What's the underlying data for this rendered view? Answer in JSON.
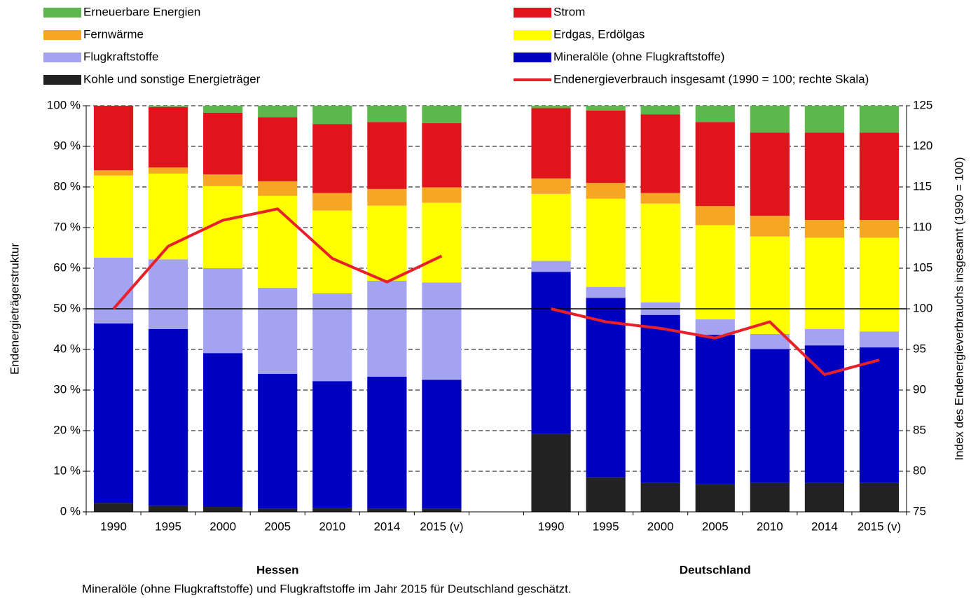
{
  "chart_data": {
    "type": "bar",
    "stacked": true,
    "categories": [
      "1990",
      "1995",
      "2000",
      "2005",
      "2010",
      "2014",
      "2015 (v)",
      null,
      "1990",
      "1995",
      "2000",
      "2005",
      "2010",
      "2014",
      "2015 (v)"
    ],
    "group_labels": [
      "Hessen",
      "Deutschland"
    ],
    "ylabel": "Endenergieträgerstruktur",
    "y2label": "Index des Endenergieverbrauchs insgesamt (1990 = 100)",
    "note": "Mineralöle (ohne Flugkraftstoffe) und Flugkraftstoffe im Jahr 2015 für Deutschland geschätzt.",
    "ylim": [
      0,
      100
    ],
    "yticks": [
      {
        "value": 0,
        "label": "0 %"
      },
      {
        "value": 10,
        "label": "10 %"
      },
      {
        "value": 20,
        "label": "20 %"
      },
      {
        "value": 30,
        "label": "30 %"
      },
      {
        "value": 40,
        "label": "40 %"
      },
      {
        "value": 50,
        "label": "50 %"
      },
      {
        "value": 60,
        "label": "60 %"
      },
      {
        "value": 70,
        "label": "70 %"
      },
      {
        "value": 80,
        "label": "80 %"
      },
      {
        "value": 90,
        "label": "90 %"
      },
      {
        "value": 100,
        "label": "100 %"
      }
    ],
    "y2lim": [
      75,
      125
    ],
    "y2ticks": [
      75,
      80,
      85,
      90,
      95,
      100,
      105,
      110,
      115,
      120,
      125
    ],
    "grid": true,
    "series": [
      {
        "name": "Kohle und sonstige Energieträger",
        "color": "#222222",
        "values": [
          2.2,
          1.5,
          1.2,
          0.8,
          1.0,
          0.8,
          0.8,
          null,
          19.2,
          8.5,
          7.1,
          6.7,
          7.1,
          7.1,
          7.1
        ]
      },
      {
        "name": "Mineralöle (ohne Flugkraftstoffe)",
        "color": "#0000c0",
        "values": [
          44.2,
          43.5,
          37.9,
          33.2,
          31.2,
          32.5,
          31.7,
          null,
          39.9,
          44.2,
          41.4,
          36.9,
          33.0,
          33.9,
          33.4
        ]
      },
      {
        "name": "Flugkraftstoffe",
        "color": "#a3a3f2",
        "values": [
          16.2,
          17.2,
          20.9,
          21.2,
          21.6,
          23.6,
          24.0,
          null,
          2.7,
          2.7,
          3.1,
          3.8,
          3.7,
          4.0,
          3.9
        ]
      },
      {
        "name": "Erdgas, Erdölgas",
        "color": "#ffff00",
        "values": [
          20.2,
          21.1,
          20.2,
          22.6,
          20.4,
          18.5,
          19.6,
          null,
          16.5,
          21.7,
          24.3,
          23.2,
          24.0,
          22.5,
          23.1
        ]
      },
      {
        "name": "Fernwärme",
        "color": "#f5a623",
        "values": [
          1.3,
          1.5,
          2.9,
          3.6,
          4.3,
          4.1,
          3.8,
          null,
          3.8,
          3.9,
          2.6,
          4.7,
          5.1,
          4.4,
          4.4
        ]
      },
      {
        "name": "Strom",
        "color": "#e0141c",
        "values": [
          15.9,
          14.9,
          15.2,
          15.8,
          17.0,
          16.5,
          15.8,
          null,
          17.3,
          17.8,
          19.4,
          20.7,
          20.5,
          21.5,
          21.5
        ]
      },
      {
        "name": "Erneuerbare Energien",
        "color": "#5cb84c",
        "values": [
          0,
          0.3,
          1.7,
          2.8,
          4.5,
          4.0,
          4.3,
          null,
          0.6,
          1.2,
          2.1,
          4.0,
          6.6,
          6.6,
          6.6
        ]
      },
      {
        "name": "Endenergieverbrauch insgesamt (1990 = 100; rechte Skala)",
        "type": "line",
        "axis": "y2",
        "color": "#e8202a",
        "values": [
          100,
          107.7,
          110.9,
          112.3,
          106.2,
          103.3,
          106.5,
          null,
          100,
          98.4,
          97.6,
          96.4,
          98.4,
          91.9,
          93.7
        ]
      }
    ]
  }
}
